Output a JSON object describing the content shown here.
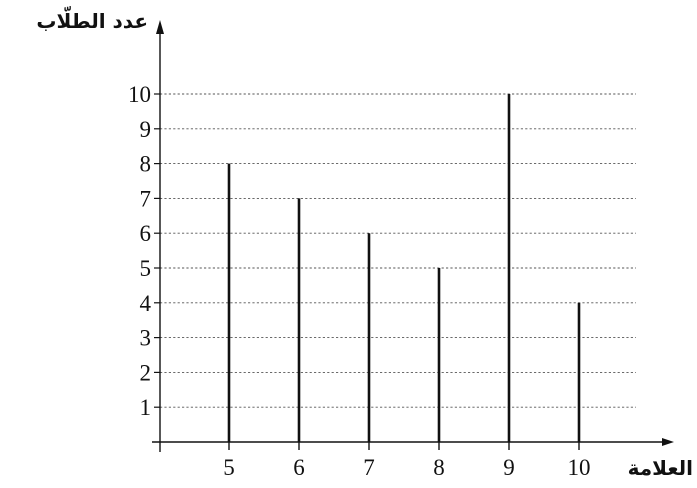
{
  "chart_data": {
    "type": "bar",
    "title": "",
    "xlabel": "العلامة",
    "ylabel": "عدد الطلّاب",
    "categories": [
      "5",
      "6",
      "7",
      "8",
      "9",
      "10"
    ],
    "values": [
      8,
      7,
      6,
      5,
      10,
      4
    ],
    "yticks": [
      "1",
      "2",
      "3",
      "4",
      "5",
      "6",
      "7",
      "8",
      "9",
      "10"
    ],
    "ylim": [
      0,
      10
    ],
    "grid": true,
    "legend": "none",
    "colors": {
      "bar": "#111111",
      "axis": "#111111",
      "grid": "#555555"
    }
  }
}
